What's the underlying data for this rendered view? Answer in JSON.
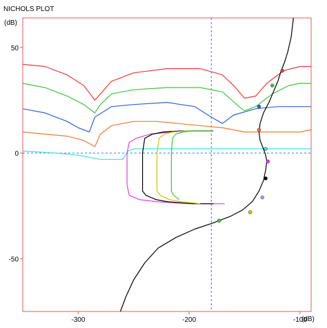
{
  "chart_data": {
    "type": "line",
    "title": "NICHOLS PLOT",
    "ylabel": "(dB)",
    "xlabel": "(dB)",
    "xlim": [
      -350,
      -90
    ],
    "ylim": [
      -75,
      64
    ],
    "x_ticks": [
      -300,
      -200,
      -100
    ],
    "x_tick_labels": [
      "-300",
      "-200",
      "-100"
    ],
    "y_ticks": [
      50,
      0,
      -50
    ],
    "y_tick_labels": [
      "50",
      "0",
      "-50"
    ],
    "grid": false,
    "reference_lines": {
      "x": -180,
      "y": 0
    },
    "colors": {
      "frame": "#e05a5a",
      "reference": "#3a7bd5",
      "response": "#000000"
    },
    "series": [
      {
        "color": "#e83a3a",
        "x": [
          -350,
          -330,
          -310,
          -295,
          -285,
          -280,
          -270,
          -250,
          -220,
          -190,
          -170,
          -160,
          -150,
          -140,
          -130,
          -115,
          -100,
          -90
        ],
        "y": [
          42,
          41,
          37,
          32,
          25,
          28,
          34,
          38,
          40,
          40,
          37,
          32,
          26,
          27,
          33,
          39,
          41,
          41
        ]
      },
      {
        "color": "#3cc43c",
        "x": [
          -350,
          -330,
          -310,
          -295,
          -285,
          -280,
          -270,
          -250,
          -220,
          -190,
          -170,
          -155,
          -150,
          -140,
          -125,
          -110,
          -100,
          -90
        ],
        "y": [
          33,
          31,
          27,
          23,
          19,
          23,
          28,
          30,
          31,
          31,
          29,
          22,
          20,
          22,
          28,
          32,
          33,
          33
        ]
      },
      {
        "color": "#2a62d8",
        "x": [
          -350,
          -330,
          -310,
          -300,
          -290,
          -285,
          -270,
          -250,
          -220,
          -195,
          -180,
          -170,
          -160,
          -140,
          -120,
          -100,
          -90
        ],
        "y": [
          21,
          19,
          15,
          12,
          10,
          17,
          22,
          23,
          24,
          22,
          17,
          14,
          18,
          21,
          22,
          22,
          22
        ]
      },
      {
        "color": "#f07830",
        "x": [
          -350,
          -330,
          -310,
          -295,
          -285,
          -280,
          -270,
          -250,
          -230,
          -210,
          -190,
          -170,
          -160,
          -150,
          -130,
          -110,
          -100,
          -90
        ],
        "y": [
          10,
          9,
          8,
          6,
          3,
          9,
          13,
          15,
          15,
          14,
          13,
          12,
          11,
          10,
          10,
          10,
          10,
          11
        ]
      },
      {
        "color": "#3ce0e0",
        "x": [
          -350,
          -320,
          -300,
          -290,
          -280,
          -270,
          -265,
          -260,
          -255,
          -250,
          -240,
          -220,
          -200,
          -190,
          -180,
          -160,
          -140,
          -120,
          -100,
          -90
        ],
        "y": [
          1,
          0,
          -1,
          -2,
          -3,
          -3,
          -3,
          -3,
          1,
          2,
          2,
          2,
          2,
          2,
          2,
          2,
          2,
          2,
          2,
          2
        ]
      },
      {
        "color": "#e040e0",
        "x": [
          -178,
          -195,
          -215,
          -235,
          -248,
          -254,
          -256,
          -256,
          -254,
          -245,
          -230,
          -215,
          -200,
          -188,
          -176,
          -168
        ],
        "y": [
          10.5,
          10.5,
          10,
          9,
          7,
          5,
          0,
          -15,
          -20,
          -22,
          -23,
          -23.5,
          -24,
          -24,
          -24,
          -24
        ]
      },
      {
        "color": "#000000",
        "x": [
          -178,
          -190,
          -208,
          -223,
          -233,
          -240,
          -242,
          -242,
          -239,
          -230,
          -220,
          -208,
          -196,
          -188,
          -178
        ],
        "y": [
          10.5,
          10.5,
          10.5,
          10,
          9,
          7,
          0,
          -18,
          -20,
          -22,
          -23,
          -23.5,
          -24,
          -24,
          -24
        ]
      },
      {
        "color": "#c8c800",
        "x": [
          -178,
          -190,
          -203,
          -215,
          -222,
          -227,
          -229,
          -229,
          -226,
          -218,
          -208,
          -198,
          -190
        ],
        "y": [
          10.5,
          10.5,
          10.5,
          10,
          9,
          7,
          0,
          -18,
          -20,
          -22,
          -23,
          -23.5,
          -24
        ]
      },
      {
        "color": "#3cc43c",
        "x": [
          -178,
          -187,
          -196,
          -205,
          -212,
          -215,
          -216,
          -216,
          -214,
          -209
        ],
        "y": [
          10.5,
          10.5,
          10.5,
          10,
          9,
          7,
          0,
          -18,
          -20,
          -22
        ]
      },
      {
        "color": "#000000",
        "x": [
          -106,
          -108,
          -111,
          -114,
          -117,
          -120,
          -124,
          -128,
          -133,
          -136,
          -137,
          -136,
          -133,
          -131,
          -130,
          -131,
          -133,
          -137,
          -143,
          -152,
          -163,
          -178,
          -195,
          -212,
          -228,
          -240,
          -250,
          -257,
          -262
        ],
        "y": [
          64,
          55,
          48,
          43,
          39,
          34,
          29,
          24,
          19,
          14,
          10,
          6,
          2,
          -1,
          -4,
          -8,
          -13,
          -18,
          -23,
          -27,
          -30,
          -33,
          -36,
          -40,
          -45,
          -52,
          -60,
          -68,
          -75
        ]
      }
    ],
    "markers": [
      {
        "color": "#e83a3a",
        "x": -116,
        "y": 39
      },
      {
        "color": "#3cc43c",
        "x": -125,
        "y": 32
      },
      {
        "color": "#2a62d8",
        "x": -137,
        "y": 22
      },
      {
        "color": "#f07830",
        "x": -137,
        "y": 11
      },
      {
        "color": "#3ce0e0",
        "x": -131,
        "y": 2
      },
      {
        "color": "#e040e0",
        "x": -129,
        "y": -4
      },
      {
        "color": "#000000",
        "x": -131,
        "y": -12
      },
      {
        "color": "#a0a0ff",
        "x": -134,
        "y": -21
      },
      {
        "color": "#c8c800",
        "x": -145,
        "y": -28
      },
      {
        "color": "#3cc43c",
        "x": -173,
        "y": -32
      }
    ]
  }
}
